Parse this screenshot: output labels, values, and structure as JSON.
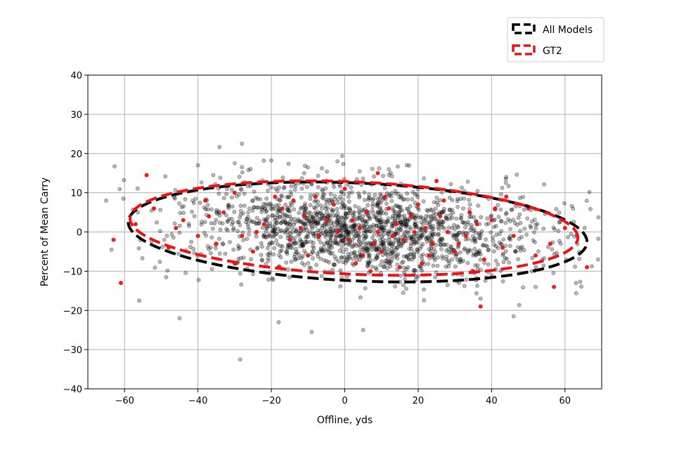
{
  "chart_data": {
    "type": "scatter",
    "title": "",
    "xlabel": "Offline, yds",
    "ylabel": "Percent of Mean Carry",
    "xlim": [
      -70,
      70
    ],
    "ylim": [
      -40,
      40
    ],
    "xticks": [
      -60,
      -40,
      -20,
      0,
      20,
      40,
      60
    ],
    "yticks": [
      -40,
      -30,
      -20,
      -10,
      0,
      10,
      20,
      30,
      40
    ],
    "xtick_labels": [
      "−60",
      "−40",
      "−20",
      "0",
      "20",
      "40",
      "60"
    ],
    "ytick_labels": [
      "−40",
      "−30",
      "−20",
      "−10",
      "0",
      "10",
      "20",
      "30",
      "40"
    ],
    "grid": true,
    "legend_position": "top-right, above plot",
    "series": [
      {
        "name": "All Models",
        "kind": "scatter-cloud",
        "color": "#000000",
        "opacity": 0.28,
        "approx_count": 1800,
        "center": [
          5,
          0.5
        ],
        "spread": [
          25,
          6
        ],
        "sample_points": [
          [
            -28,
            22.5
          ],
          [
            -28.5,
            -32.5
          ],
          [
            -9,
            -25.5
          ],
          [
            5,
            -25
          ],
          [
            -18,
            -23
          ],
          [
            -45,
            -22
          ],
          [
            37,
            -17
          ],
          [
            -56,
            -17.5
          ],
          [
            63,
            -13
          ],
          [
            46,
            -21.5
          ],
          [
            -2,
            18
          ],
          [
            -40,
            17
          ],
          [
            12,
            16
          ],
          [
            -65,
            8
          ],
          [
            69,
            -7
          ],
          [
            44,
            14
          ],
          [
            52,
            -14
          ]
        ]
      },
      {
        "name": "GT2",
        "kind": "scatter",
        "color": "#ee1111",
        "points": [
          [
            -54,
            14.5
          ],
          [
            -61,
            -13
          ],
          [
            9,
            15
          ],
          [
            25,
            13
          ],
          [
            37,
            -19
          ],
          [
            57,
            -14
          ],
          [
            66,
            -9
          ],
          [
            -63,
            -2
          ],
          [
            -38,
            8
          ],
          [
            -30,
            10
          ],
          [
            -19,
            9
          ],
          [
            0,
            11
          ],
          [
            20,
            7
          ],
          [
            34,
            5
          ],
          [
            50,
            6
          ],
          [
            -48,
            -4
          ],
          [
            -35,
            -3
          ],
          [
            -25,
            -5
          ],
          [
            -10,
            -6
          ],
          [
            3,
            -8
          ],
          [
            15,
            -9
          ],
          [
            30,
            -5
          ],
          [
            43,
            -4
          ],
          [
            56,
            -3
          ],
          [
            -44,
            3
          ],
          [
            -22,
            2
          ],
          [
            -12,
            1
          ],
          [
            -5,
            3
          ],
          [
            4,
            1
          ],
          [
            9,
            0
          ],
          [
            14,
            2
          ],
          [
            22,
            1
          ],
          [
            28,
            0
          ],
          [
            36,
            2
          ],
          [
            -33,
            5
          ],
          [
            -17,
            6
          ],
          [
            -3,
            7
          ],
          [
            6,
            5
          ],
          [
            12,
            6
          ],
          [
            18,
            4
          ],
          [
            26,
            4
          ],
          [
            40,
            3
          ],
          [
            -40,
            -1
          ],
          [
            -28,
            -1
          ],
          [
            -15,
            -2
          ],
          [
            -7,
            -1
          ],
          [
            1,
            -2
          ],
          [
            8,
            -3
          ],
          [
            16,
            -2
          ],
          [
            24,
            -3
          ],
          [
            33,
            -1
          ],
          [
            46,
            -1
          ],
          [
            -52,
            6
          ],
          [
            -57,
            2
          ],
          [
            60,
            1
          ],
          [
            -30,
            -8
          ],
          [
            -18,
            -9
          ],
          [
            7,
            -10
          ],
          [
            21,
            -8
          ],
          [
            38,
            -7
          ],
          [
            -8,
            9
          ],
          [
            11,
            9
          ],
          [
            27,
            8
          ],
          [
            44,
            9
          ],
          [
            -37,
            4
          ],
          [
            31,
            -3
          ],
          [
            52,
            -6
          ],
          [
            -24,
            0
          ],
          [
            2,
            3
          ],
          [
            19,
            0
          ],
          [
            10,
            -5
          ],
          [
            -11,
            4
          ],
          [
            41,
            6
          ],
          [
            -46,
            1
          ],
          [
            -14,
            8
          ],
          [
            5,
            -6
          ],
          [
            23,
            -6
          ],
          [
            35,
            -10
          ],
          [
            -2,
            0
          ],
          [
            13,
            -1
          ]
        ]
      }
    ],
    "ellipses": [
      {
        "name": "All Models",
        "color": "#000000",
        "cx": 3.5,
        "cy": 0,
        "rx": 62.5,
        "ry": 12.5,
        "tilt_slope": -0.04
      },
      {
        "name": "GT2",
        "color": "#ee1111",
        "cx": 2.5,
        "cy": 1,
        "rx": 61,
        "ry": 11.8,
        "tilt_slope": -0.04
      }
    ],
    "legend": [
      {
        "label": "All Models",
        "color": "#000000"
      },
      {
        "label": "GT2",
        "color": "#ee1111"
      }
    ]
  }
}
